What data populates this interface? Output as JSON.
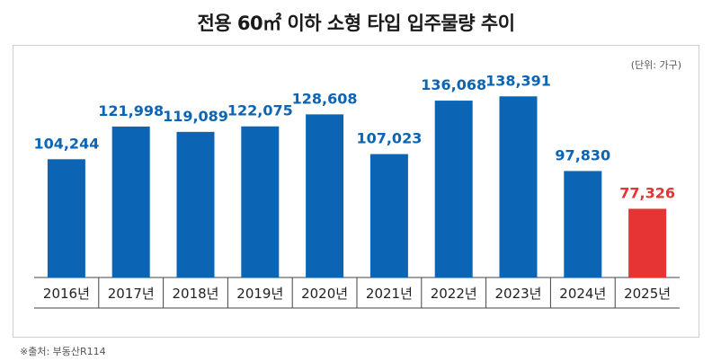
{
  "title": "전용 60㎡ 이하 소형 타입 입주물량 추이",
  "unit_note": "(단위: 가구)",
  "source_note": "※출처: 부동산R114",
  "colors": {
    "bar": "#0b65b4",
    "highlight": "#e63333",
    "value_label": "#0b65b4",
    "highlight_label": "#e63333"
  },
  "chart_data": {
    "type": "bar",
    "categories": [
      "2016년",
      "2017년",
      "2018년",
      "2019년",
      "2020년",
      "2021년",
      "2022년",
      "2023년",
      "2024년",
      "2025년"
    ],
    "values": [
      104244,
      121998,
      119089,
      122075,
      128608,
      107023,
      136068,
      138391,
      97830,
      77326
    ],
    "value_labels": [
      "104,244",
      "121,998",
      "119,089",
      "122,075",
      "128,608",
      "107,023",
      "136,068",
      "138,391",
      "97,830",
      "77,326"
    ],
    "highlight_index": 9,
    "ylim": [
      40000,
      140000
    ],
    "grid": false,
    "legend": "none"
  }
}
